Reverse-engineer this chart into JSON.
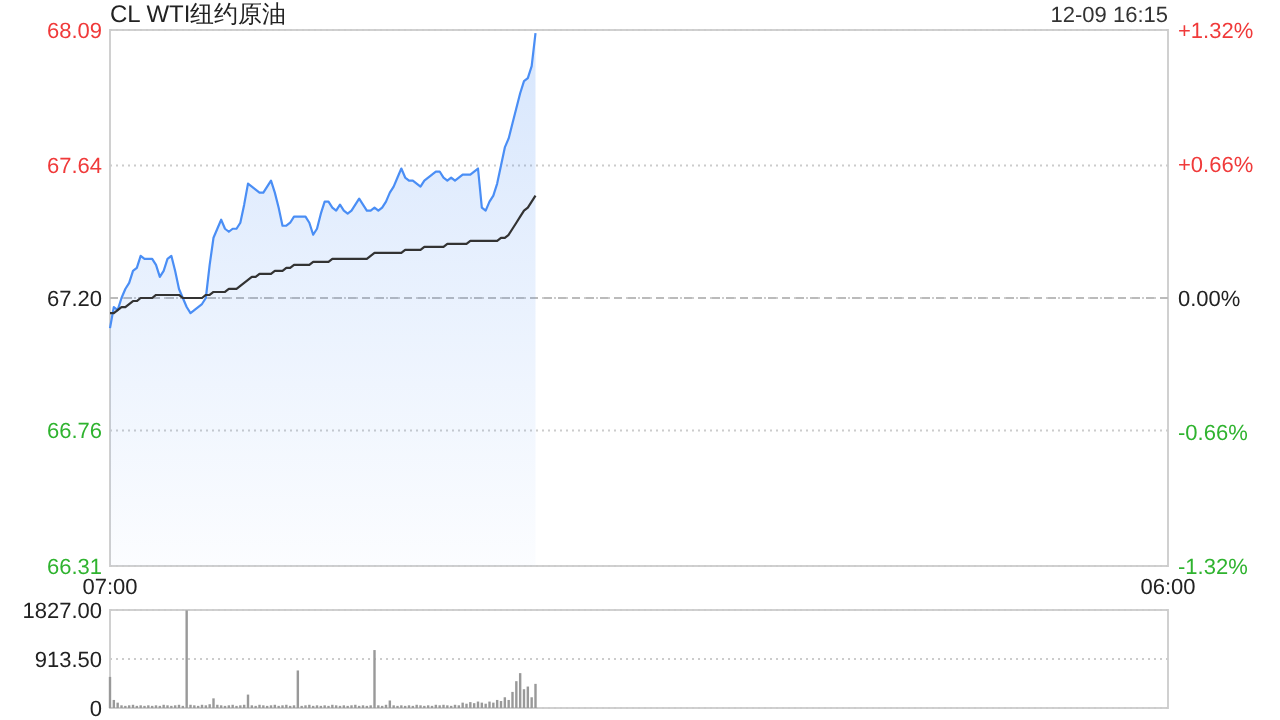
{
  "chart_data": [
    {
      "type": "line",
      "title": "CL WTI纽约原油",
      "annotations": [
        "12-09 16:15"
      ],
      "categories": [
        "07:00",
        null,
        null,
        null,
        null,
        null,
        null,
        null,
        null,
        null,
        null,
        null,
        null,
        null,
        null,
        null,
        null,
        null,
        null,
        null,
        null,
        null,
        null,
        null,
        null,
        null,
        null,
        null,
        null,
        null,
        null,
        null,
        null,
        null,
        null,
        null,
        null,
        null,
        null,
        null,
        null,
        null,
        null,
        null,
        null,
        null,
        null,
        null,
        null,
        null,
        null,
        null,
        null,
        null,
        null,
        null,
        null,
        null,
        null,
        null,
        null,
        null,
        null,
        null,
        null,
        null,
        null,
        null,
        null,
        null,
        null,
        null,
        null,
        null,
        null,
        null,
        null,
        null,
        null,
        null,
        null,
        null,
        null,
        null,
        null,
        null,
        null,
        null,
        null,
        null,
        null,
        null,
        null,
        null,
        null,
        null,
        null,
        null,
        null,
        null,
        null,
        null,
        null,
        null,
        null,
        null,
        null,
        null,
        null,
        null,
        null,
        null,
        null,
        null,
        null,
        null,
        null,
        null,
        null,
        null,
        null,
        null,
        null,
        null,
        null,
        null,
        null,
        null,
        null,
        null,
        null,
        null,
        null,
        null,
        null,
        null,
        null,
        null,
        null,
        null,
        null,
        null,
        null,
        null,
        null,
        null,
        null,
        null,
        null,
        null,
        null,
        null,
        null,
        null,
        null,
        null,
        null,
        null,
        null,
        null,
        null,
        null,
        null,
        null,
        null,
        null,
        null,
        null,
        null,
        null,
        null,
        null,
        null,
        null,
        null,
        null,
        null,
        null,
        null,
        null,
        null,
        null,
        null,
        null,
        null,
        null,
        null,
        null,
        null,
        null,
        null,
        null,
        null,
        null,
        null,
        null,
        null,
        null,
        null,
        null,
        null,
        null,
        null,
        null,
        null,
        null,
        null,
        null,
        null,
        null,
        null,
        null,
        null,
        null,
        null,
        null,
        null,
        null,
        null,
        null,
        null,
        null,
        null,
        null,
        null,
        null,
        null,
        null,
        null,
        null,
        null,
        null,
        null,
        null,
        null,
        null,
        null,
        null,
        null,
        null,
        null,
        null,
        null,
        null,
        null,
        null,
        null,
        null,
        null,
        null,
        null,
        null,
        null,
        null,
        null,
        null,
        null,
        null,
        null,
        null,
        null,
        null,
        null,
        null,
        null,
        null,
        null,
        null,
        null,
        null,
        null,
        null,
        null,
        null,
        null,
        null,
        "06:00"
      ],
      "ylim": [
        66.31,
        68.09
      ],
      "yticks": [
        66.31,
        66.76,
        {
          "value": 67.2,
          "label": "67.20"
        },
        67.64,
        68.09
      ],
      "y2lim": [
        -1.32,
        1.32
      ],
      "y2ticks": [
        {
          "value": -1.32,
          "label": "-1.32%"
        },
        {
          "value": -0.66,
          "label": "-0.66%"
        },
        {
          "value": 0,
          "label": "0.00%"
        },
        {
          "value": 0.66,
          "label": "+0.66%"
        },
        {
          "value": 1.32,
          "label": "+1.32%"
        }
      ],
      "grid": "y",
      "ref_lines": [
        {
          "axis": "y",
          "value": 67.2,
          "line_style": "dashed",
          "color": "#bbbbbb"
        }
      ],
      "series": [
        {
          "type": "area",
          "color": "#4a8ef5",
          "values": [
            67.1,
            67.17,
            67.16,
            67.2,
            67.23,
            67.25,
            67.29,
            67.3,
            67.34,
            67.33,
            67.33,
            67.33,
            67.31,
            67.27,
            67.29,
            67.33,
            67.34,
            67.29,
            67.23,
            67.2,
            67.17,
            67.15,
            67.16,
            67.17,
            67.18,
            67.2,
            67.31,
            67.4,
            67.43,
            67.46,
            67.43,
            67.42,
            67.43,
            67.43,
            67.45,
            67.51,
            67.58,
            67.57,
            67.56,
            67.55,
            67.55,
            67.57,
            67.59,
            67.55,
            67.5,
            67.44,
            67.44,
            67.45,
            67.47,
            67.47,
            67.47,
            67.47,
            67.45,
            67.41,
            67.43,
            67.48,
            67.52,
            67.52,
            67.5,
            67.49,
            67.51,
            67.49,
            67.48,
            67.49,
            67.51,
            67.53,
            67.51,
            67.49,
            67.49,
            67.5,
            67.49,
            67.5,
            67.52,
            67.55,
            67.57,
            67.6,
            67.63,
            67.6,
            67.59,
            67.59,
            67.58,
            67.57,
            67.59,
            67.6,
            67.61,
            67.62,
            67.62,
            67.6,
            67.59,
            67.6,
            67.59,
            67.6,
            67.61,
            67.61,
            67.61,
            67.62,
            67.63,
            67.5,
            67.49,
            67.52,
            67.54,
            67.58,
            67.64,
            67.7,
            67.73,
            67.78,
            67.83,
            67.88,
            67.92,
            67.93,
            67.97,
            68.08,
            null,
            null,
            null,
            null,
            null,
            null,
            null,
            null,
            null,
            null,
            null,
            null,
            null,
            null,
            null,
            null,
            null,
            null,
            null,
            null,
            null,
            null,
            null,
            null,
            null,
            null,
            null,
            null,
            null,
            null,
            null,
            null,
            null,
            null,
            null,
            null,
            null,
            null,
            null,
            null,
            null,
            null,
            null,
            null,
            null,
            null,
            null,
            null,
            null,
            null,
            null,
            null,
            null,
            null,
            null,
            null,
            null,
            null,
            null,
            null,
            null,
            null,
            null,
            null,
            null,
            null,
            null,
            null,
            null,
            null,
            null,
            null,
            null,
            null,
            null,
            null,
            null,
            null,
            null,
            null,
            null,
            null,
            null,
            null,
            null,
            null,
            null,
            null,
            null,
            null,
            null,
            null,
            null,
            null,
            null,
            null,
            null,
            null,
            null,
            null,
            null,
            null,
            null,
            null,
            null,
            null,
            null,
            null,
            null,
            null,
            null,
            null,
            null,
            null,
            null,
            null,
            null,
            null,
            null,
            null,
            null,
            null,
            null,
            null,
            null,
            null,
            null,
            null,
            null,
            null,
            null,
            null,
            null,
            null,
            null,
            null,
            null,
            null,
            null,
            null,
            null,
            null,
            null,
            null,
            null,
            null,
            null,
            null,
            null,
            null,
            null,
            null,
            null,
            null,
            null,
            null,
            null,
            null,
            null,
            null,
            null,
            null,
            null,
            null,
            null
          ]
        },
        {
          "type": "line",
          "color": "#333333",
          "values": [
            67.15,
            67.15,
            67.16,
            67.17,
            67.17,
            67.18,
            67.19,
            67.19,
            67.2,
            67.2,
            67.2,
            67.2,
            67.21,
            67.21,
            67.21,
            67.21,
            67.21,
            67.21,
            67.21,
            67.2,
            67.2,
            67.2,
            67.2,
            67.2,
            67.2,
            67.21,
            67.21,
            67.22,
            67.22,
            67.22,
            67.22,
            67.23,
            67.23,
            67.23,
            67.24,
            67.25,
            67.26,
            67.27,
            67.27,
            67.28,
            67.28,
            67.28,
            67.28,
            67.29,
            67.29,
            67.29,
            67.3,
            67.3,
            67.31,
            67.31,
            67.31,
            67.31,
            67.31,
            67.32,
            67.32,
            67.32,
            67.32,
            67.32,
            67.33,
            67.33,
            67.33,
            67.33,
            67.33,
            67.33,
            67.33,
            67.33,
            67.33,
            67.33,
            67.34,
            67.35,
            67.35,
            67.35,
            67.35,
            67.35,
            67.35,
            67.35,
            67.35,
            67.36,
            67.36,
            67.36,
            67.36,
            67.36,
            67.37,
            67.37,
            67.37,
            67.37,
            67.37,
            67.37,
            67.38,
            67.38,
            67.38,
            67.38,
            67.38,
            67.38,
            67.39,
            67.39,
            67.39,
            67.39,
            67.39,
            67.39,
            67.39,
            67.39,
            67.4,
            67.4,
            67.41,
            67.43,
            67.45,
            67.47,
            67.49,
            67.5,
            67.52,
            67.54,
            null,
            null,
            null,
            null,
            null,
            null,
            null,
            null,
            null,
            null,
            null,
            null,
            null,
            null,
            null,
            null,
            null,
            null,
            null,
            null,
            null,
            null,
            null,
            null,
            null,
            null,
            null,
            null,
            null,
            null,
            null,
            null,
            null,
            null,
            null,
            null,
            null,
            null,
            null,
            null,
            null,
            null,
            null,
            null,
            null,
            null,
            null,
            null,
            null,
            null,
            null,
            null,
            null,
            null,
            null,
            null,
            null,
            null,
            null,
            null,
            null,
            null,
            null,
            null,
            null,
            null,
            null,
            null,
            null,
            null,
            null,
            null,
            null,
            null,
            null,
            null,
            null,
            null,
            null,
            null,
            null,
            null,
            null,
            null,
            null,
            null,
            null,
            null,
            null,
            null,
            null,
            null,
            null,
            null,
            null,
            null,
            null,
            null,
            null,
            null,
            null,
            null,
            null,
            null,
            null,
            null,
            null,
            null,
            null,
            null,
            null,
            null,
            null,
            null,
            null,
            null,
            null,
            null,
            null,
            null,
            null,
            null,
            null,
            null,
            null,
            null,
            null,
            null,
            null,
            null,
            null,
            null,
            null,
            null,
            null,
            null,
            null,
            null,
            null,
            null,
            null,
            null,
            null,
            null,
            null,
            null,
            null,
            null,
            null,
            null,
            null,
            null,
            null,
            null,
            null,
            null,
            null,
            null,
            null,
            null,
            null,
            null,
            null,
            null,
            null
          ]
        }
      ]
    },
    {
      "type": "bar",
      "categories": [
        null,
        null,
        null,
        null,
        null,
        null,
        null,
        null,
        null,
        null,
        null,
        null,
        null,
        null,
        null,
        null,
        null,
        null,
        null,
        null,
        null,
        null,
        null,
        null,
        null,
        null,
        null,
        null,
        null,
        null,
        null,
        null,
        null,
        null,
        null,
        null,
        null,
        null,
        null,
        null,
        null,
        null,
        null,
        null,
        null,
        null,
        null,
        null,
        null,
        null,
        null,
        null,
        null,
        null,
        null,
        null,
        null,
        null,
        null,
        null,
        null,
        null,
        null,
        null,
        null,
        null,
        null,
        null,
        null,
        null,
        null,
        null,
        null,
        null,
        null,
        null,
        null,
        null,
        null,
        null,
        null,
        null,
        null,
        null,
        null,
        null,
        null,
        null,
        null,
        null,
        null,
        null,
        null,
        null,
        null,
        null,
        null,
        null,
        null,
        null,
        null,
        null,
        null,
        null,
        null,
        null,
        null,
        null,
        null,
        null,
        null,
        null,
        null,
        null,
        null,
        null,
        null,
        null,
        null,
        null,
        null,
        null,
        null,
        null,
        null,
        null,
        null,
        null,
        null,
        null,
        null,
        null,
        null,
        null,
        null,
        null,
        null,
        null,
        null,
        null,
        null,
        null,
        null,
        null,
        null,
        null,
        null,
        null,
        null,
        null,
        null,
        null,
        null,
        null,
        null,
        null,
        null,
        null,
        null,
        null,
        null,
        null,
        null,
        null,
        null,
        null,
        null,
        null,
        null,
        null,
        null,
        null,
        null,
        null,
        null,
        null,
        null,
        null,
        null,
        null,
        null,
        null,
        null,
        null,
        null,
        null,
        null,
        null,
        null,
        null,
        null,
        null,
        null,
        null,
        null,
        null,
        null,
        null,
        null,
        null,
        null,
        null,
        null,
        null,
        null,
        null,
        null,
        null,
        null,
        null,
        null,
        null,
        null,
        null,
        null,
        null,
        null,
        null,
        null,
        null,
        null,
        null,
        null,
        null,
        null,
        null,
        null,
        null,
        null,
        null,
        null,
        null,
        null,
        null,
        null,
        null,
        null,
        null,
        null,
        null,
        null,
        null,
        null,
        null,
        null,
        null,
        null,
        null,
        null,
        null,
        null,
        null,
        null,
        null,
        null,
        null,
        null,
        null,
        null,
        null,
        null,
        null,
        null,
        null,
        null,
        null,
        null,
        null,
        null,
        null,
        null,
        null,
        null,
        null,
        null,
        null,
        null
      ],
      "ylim": [
        0,
        1827
      ],
      "yticks": [
        0,
        {
          "value": 913.5,
          "label": "913.50"
        },
        {
          "value": 1827,
          "label": "1827.00"
        }
      ],
      "grid": "y",
      "color": "#999999",
      "values": [
        580,
        150,
        100,
        50,
        40,
        50,
        60,
        40,
        50,
        40,
        50,
        40,
        50,
        40,
        60,
        50,
        40,
        50,
        60,
        40,
        1820,
        60,
        50,
        40,
        60,
        50,
        70,
        180,
        60,
        50,
        40,
        50,
        60,
        40,
        50,
        60,
        250,
        50,
        40,
        60,
        50,
        40,
        50,
        60,
        40,
        50,
        60,
        40,
        50,
        700,
        40,
        50,
        60,
        40,
        50,
        40,
        50,
        40,
        60,
        50,
        40,
        50,
        40,
        50,
        60,
        40,
        50,
        40,
        50,
        1080,
        50,
        40,
        60,
        140,
        50,
        40,
        50,
        40,
        50,
        40,
        60,
        50,
        40,
        50,
        40,
        60,
        50,
        60,
        50,
        40,
        60,
        50,
        100,
        80,
        110,
        90,
        120,
        100,
        80,
        120,
        100,
        150,
        130,
        200,
        150,
        300,
        500,
        650,
        350,
        400,
        200,
        450,
        null,
        null,
        null,
        null,
        null,
        null,
        null,
        null,
        null,
        null,
        null,
        null,
        null,
        null,
        null,
        null,
        null,
        null,
        null,
        null,
        null,
        null,
        null,
        null,
        null,
        null,
        null,
        null,
        null,
        null,
        null,
        null,
        null,
        null,
        null,
        null,
        null,
        null,
        null,
        null,
        null,
        null,
        null,
        null,
        null,
        null,
        null,
        null,
        null,
        null,
        null,
        null,
        null,
        null,
        null,
        null,
        null,
        null,
        null,
        null,
        null,
        null,
        null,
        null,
        null,
        null,
        null,
        null,
        null,
        null,
        null,
        null,
        null,
        null,
        null,
        null,
        null,
        null,
        null,
        null,
        null,
        null,
        null,
        null,
        null,
        null,
        null,
        null,
        null,
        null,
        null,
        null,
        null,
        null,
        null,
        null,
        null,
        null,
        null,
        null,
        null,
        null,
        null,
        null,
        null,
        null,
        null,
        null,
        null,
        null,
        null,
        null,
        null,
        null,
        null,
        null,
        null,
        null,
        null,
        null,
        null,
        null,
        null,
        null,
        null,
        null,
        null,
        null,
        null,
        null,
        null,
        null,
        null,
        null,
        null,
        null,
        null,
        null,
        null,
        null,
        null,
        null,
        null,
        null,
        null,
        null,
        null,
        null,
        null,
        null,
        null,
        null,
        null,
        null,
        null,
        null,
        null,
        null,
        null,
        null,
        null,
        null,
        null,
        null,
        null
      ]
    }
  ]
}
